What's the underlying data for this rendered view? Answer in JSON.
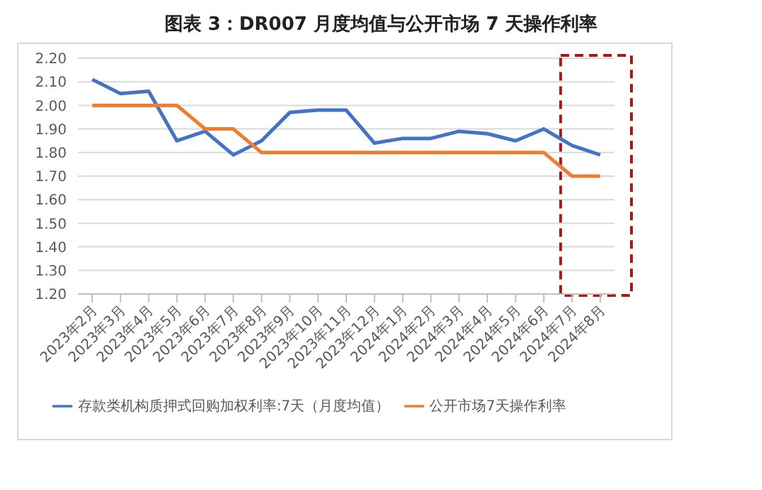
{
  "chart_data": {
    "type": "line",
    "title": "图表 3：DR007 月度均值与公开市场 7 天操作利率",
    "categories": [
      "2023年2月",
      "2023年3月",
      "2023年4月",
      "2023年5月",
      "2023年6月",
      "2023年7月",
      "2023年8月",
      "2023年9月",
      "2023年10月",
      "2023年11月",
      "2023年12月",
      "2024年1月",
      "2024年2月",
      "2024年3月",
      "2024年4月",
      "2024年5月",
      "2024年6月",
      "2024年7月",
      "2024年8月"
    ],
    "series": [
      {
        "name": "存款类机构质押式回购加权利率:7天（月度均值）",
        "color": "#4472c4",
        "values": [
          2.11,
          2.05,
          2.06,
          1.85,
          1.89,
          1.79,
          1.85,
          1.97,
          1.98,
          1.98,
          1.84,
          1.86,
          1.86,
          1.89,
          1.88,
          1.85,
          1.9,
          1.83,
          1.79
        ]
      },
      {
        "name": "公开市场7天操作利率",
        "color": "#ed7d31",
        "values": [
          2.0,
          2.0,
          2.0,
          2.0,
          1.9,
          1.9,
          1.8,
          1.8,
          1.8,
          1.8,
          1.8,
          1.8,
          1.8,
          1.8,
          1.8,
          1.8,
          1.8,
          1.7,
          1.7
        ]
      }
    ],
    "ylim": [
      1.2,
      2.2
    ],
    "yticks": [
      {
        "value": 1.2,
        "label": "1.20"
      },
      {
        "value": 1.3,
        "label": "1.30"
      },
      {
        "value": 1.4,
        "label": "1.40"
      },
      {
        "value": 1.5,
        "label": "1.50"
      },
      {
        "value": 1.6,
        "label": "1.60"
      },
      {
        "value": 1.7,
        "label": "1.70"
      },
      {
        "value": 1.8,
        "label": "1.80"
      },
      {
        "value": 1.9,
        "label": "1.90"
      },
      {
        "value": 2.0,
        "label": "2.00"
      },
      {
        "value": 2.1,
        "label": "2.10"
      },
      {
        "value": 2.2,
        "label": "2.20"
      }
    ],
    "grid": "y",
    "legend": "bottom",
    "marker": "none",
    "line_style": "solid"
  }
}
